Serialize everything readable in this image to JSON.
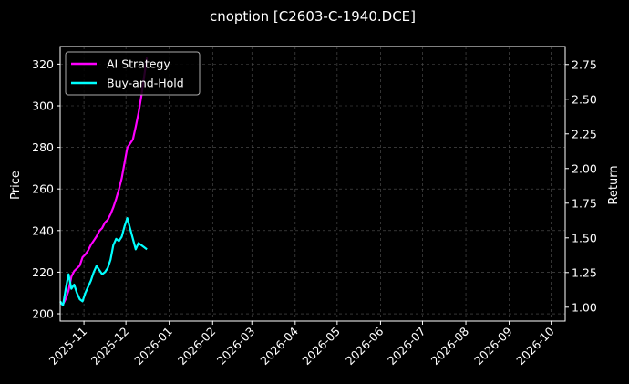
{
  "chart_data": {
    "type": "line",
    "title": "cnoption [C2603-C-1940.DCE]",
    "ylabel_left": "Price",
    "ylabel_right": "Return",
    "grid": true,
    "legend_placement": "top-left",
    "x_ticks": [
      "2025-11",
      "2025-12",
      "2026-01",
      "2026-02",
      "2026-03",
      "2026-04",
      "2026-05",
      "2026-06",
      "2026-07",
      "2026-08",
      "2026-09",
      "2026-10"
    ],
    "xlim": [
      "2025-10-15",
      "2026-10-11"
    ],
    "ylim_left": [
      196.5,
      328.5
    ],
    "ylim_right": [
      0.9,
      2.88
    ],
    "y_ticks_left": [
      "200",
      "220",
      "240",
      "260",
      "280",
      "300",
      "320"
    ],
    "y_ticks_right": [
      "1.00",
      "1.25",
      "1.50",
      "1.75",
      "2.00",
      "2.25",
      "2.50",
      "2.75"
    ],
    "series": [
      {
        "name": "AI Strategy",
        "axis": "right",
        "color": "#ff00ff",
        "x": [
          "2025-10-15",
          "2025-10-17",
          "2025-10-19",
          "2025-10-21",
          "2025-10-23",
          "2025-10-25",
          "2025-10-27",
          "2025-10-29",
          "2025-10-31",
          "2025-11-02",
          "2025-11-04",
          "2025-11-06",
          "2025-11-08",
          "2025-11-10",
          "2025-11-12",
          "2025-11-14",
          "2025-11-16",
          "2025-11-18",
          "2025-11-20",
          "2025-11-22",
          "2025-11-24",
          "2025-11-26",
          "2025-11-28",
          "2025-11-30",
          "2025-12-02",
          "2025-12-04",
          "2025-12-06",
          "2025-12-08",
          "2025-12-10",
          "2025-12-12",
          "2025-12-14",
          "2025-12-16"
        ],
        "values": [
          1.03,
          1.02,
          1.06,
          1.12,
          1.22,
          1.26,
          1.28,
          1.3,
          1.36,
          1.38,
          1.41,
          1.45,
          1.48,
          1.51,
          1.55,
          1.57,
          1.61,
          1.63,
          1.67,
          1.72,
          1.78,
          1.85,
          1.93,
          2.04,
          2.15,
          2.18,
          2.21,
          2.3,
          2.4,
          2.52,
          2.66,
          2.8
        ]
      },
      {
        "name": "Buy-and-Hold",
        "axis": "left",
        "color": "#00ffff",
        "x": [
          "2025-10-15",
          "2025-10-17",
          "2025-10-19",
          "2025-10-21",
          "2025-10-23",
          "2025-10-25",
          "2025-10-27",
          "2025-10-29",
          "2025-10-31",
          "2025-11-02",
          "2025-11-04",
          "2025-11-06",
          "2025-11-08",
          "2025-11-10",
          "2025-11-12",
          "2025-11-14",
          "2025-11-16",
          "2025-11-18",
          "2025-11-20",
          "2025-11-22",
          "2025-11-24",
          "2025-11-26",
          "2025-11-28",
          "2025-11-30",
          "2025-12-02",
          "2025-12-04",
          "2025-12-06",
          "2025-12-08",
          "2025-12-10",
          "2025-12-12",
          "2025-12-14",
          "2025-12-16"
        ],
        "values": [
          206,
          204,
          212,
          219,
          212,
          214,
          210,
          207,
          206,
          210,
          213,
          216,
          220,
          223,
          221,
          219,
          220,
          222,
          226,
          233,
          236,
          235,
          237,
          242,
          246,
          241,
          236,
          231,
          234,
          233,
          232,
          231
        ]
      }
    ]
  }
}
